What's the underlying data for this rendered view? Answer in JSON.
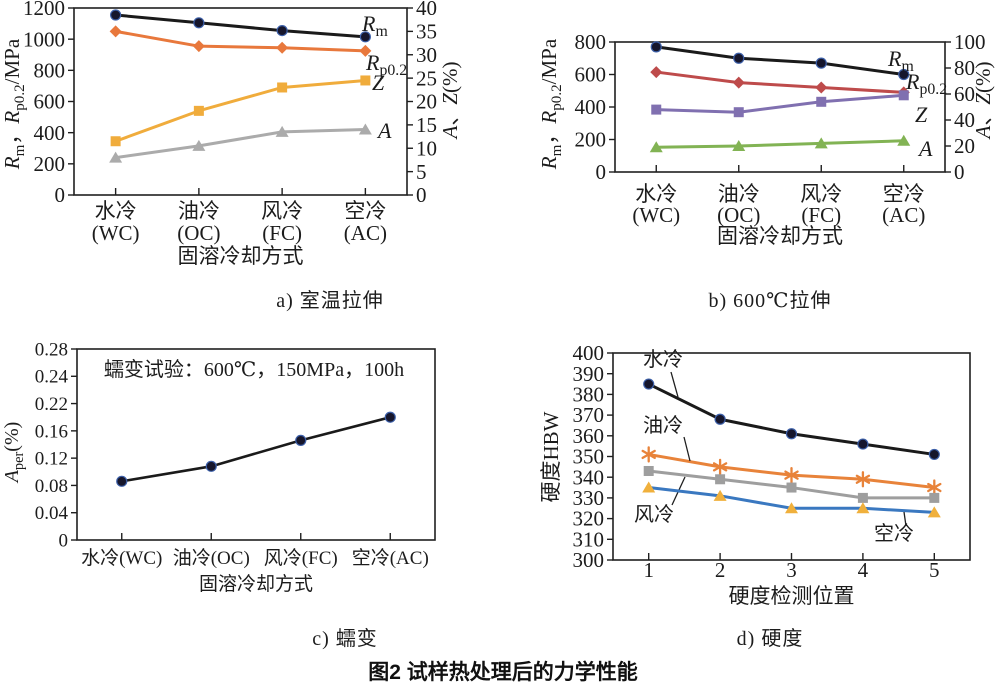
{
  "figure_title": "图2  试样热处理后的力学性能",
  "chart_data": [
    {
      "id": "a",
      "type": "line",
      "caption": "a) 室温拉伸",
      "xlabel": "固溶冷却方式",
      "categories": [
        [
          "水冷",
          "(WC)"
        ],
        [
          "油冷",
          "(OC)"
        ],
        [
          "风冷",
          "(FC)"
        ],
        [
          "空冷",
          "(AC)"
        ]
      ],
      "y_left": {
        "label": "Rm，Rp0.2/MPa",
        "label_rich": [
          {
            "t": "R",
            "i": 1
          },
          {
            "t": "m",
            "s": 1
          },
          {
            "t": "，"
          },
          {
            "t": "R",
            "i": 1
          },
          {
            "t": "p0.2",
            "s": 1
          },
          {
            "t": "/MPa"
          }
        ],
        "ticks": [
          0,
          200,
          400,
          600,
          800,
          1000,
          1200
        ],
        "range": [
          0,
          1200
        ]
      },
      "y_right": {
        "label": "A、Z(%)",
        "label_rich": [
          {
            "t": "A",
            "i": 1
          },
          {
            "t": "、"
          },
          {
            "t": "Z",
            "i": 1
          },
          {
            "t": "(%)"
          }
        ],
        "ticks": [
          0,
          5,
          10,
          15,
          20,
          25,
          30,
          35,
          40
        ],
        "range": [
          0,
          40
        ]
      },
      "series": [
        {
          "name": "Rm",
          "label_rich": [
            {
              "t": "R",
              "i": 1
            },
            {
              "t": "m",
              "s": 1
            }
          ],
          "axis": "left",
          "marker": "circle",
          "color": "#1a1a1a",
          "marker_color": "#16162c",
          "values": [
            1155,
            1105,
            1055,
            1015
          ]
        },
        {
          "name": "Rp0.2",
          "label_rich": [
            {
              "t": "R",
              "i": 1
            },
            {
              "t": "p0.2",
              "s": 1
            }
          ],
          "axis": "left",
          "marker": "diamond",
          "color": "#E8783C",
          "values": [
            1050,
            955,
            945,
            925
          ]
        },
        {
          "name": "Z",
          "label_rich": [
            {
              "t": "Z",
              "i": 1
            }
          ],
          "axis": "right",
          "marker": "square",
          "color": "#F0AC3C",
          "values": [
            11.5,
            18,
            23,
            24.5
          ]
        },
        {
          "name": "A",
          "label_rich": [
            {
              "t": "A",
              "i": 1
            }
          ],
          "axis": "right",
          "marker": "triangle",
          "color": "#ABABAB",
          "values": [
            8,
            10.5,
            13.5,
            14
          ]
        }
      ]
    },
    {
      "id": "b",
      "type": "line",
      "caption": "b) 600℃拉伸",
      "xlabel": "固溶冷却方式",
      "categories": [
        [
          "水冷",
          "(WC)"
        ],
        [
          "油冷",
          "(OC)"
        ],
        [
          "风冷",
          "(FC)"
        ],
        [
          "空冷",
          "(AC)"
        ]
      ],
      "y_left": {
        "label": "Rm，Rp0.2/MPa",
        "label_rich": [
          {
            "t": "R",
            "i": 1
          },
          {
            "t": "m",
            "s": 1
          },
          {
            "t": "，"
          },
          {
            "t": "R",
            "i": 1
          },
          {
            "t": "p0.2",
            "s": 1
          },
          {
            "t": "/MPa"
          }
        ],
        "ticks": [
          0,
          200,
          400,
          600,
          800
        ],
        "range": [
          0,
          800
        ]
      },
      "y_right": {
        "label": "A、Z(%)",
        "label_rich": [
          {
            "t": "A",
            "i": 1
          },
          {
            "t": "、"
          },
          {
            "t": "Z",
            "i": 1
          },
          {
            "t": "(%)"
          }
        ],
        "ticks": [
          0,
          20,
          40,
          60,
          80,
          100
        ],
        "range": [
          0,
          100
        ]
      },
      "series": [
        {
          "name": "Rm",
          "label_rich": [
            {
              "t": "R",
              "i": 1
            },
            {
              "t": "m",
              "s": 1
            }
          ],
          "axis": "left",
          "marker": "circle",
          "color": "#1a1a1a",
          "marker_color": "#16162c",
          "values": [
            770,
            700,
            670,
            600
          ]
        },
        {
          "name": "Rp0.2",
          "label_rich": [
            {
              "t": "R",
              "i": 1
            },
            {
              "t": "p0.2",
              "s": 1
            }
          ],
          "axis": "left",
          "marker": "diamond",
          "color": "#BE4B4B",
          "values": [
            615,
            550,
            520,
            490
          ]
        },
        {
          "name": "Z",
          "label_rich": [
            {
              "t": "Z",
              "i": 1
            }
          ],
          "axis": "right",
          "marker": "square",
          "color": "#8070B0",
          "values": [
            48,
            46,
            54,
            59
          ]
        },
        {
          "name": "A",
          "label_rich": [
            {
              "t": "A",
              "i": 1
            }
          ],
          "axis": "right",
          "marker": "triangle",
          "color": "#82B354",
          "values": [
            19,
            20,
            22,
            24
          ]
        }
      ]
    },
    {
      "id": "c",
      "type": "line",
      "caption": "c) 蠕变",
      "xlabel": "固溶冷却方式",
      "annotation": "蠕变试验：600℃，150MPa，100h",
      "categories": [
        "水冷(WC)",
        "油冷(OC)",
        "风冷(FC)",
        "空冷(AC)"
      ],
      "y_left": {
        "label": "Aper(%)",
        "label_rich": [
          {
            "t": "A",
            "i": 1
          },
          {
            "t": "per",
            "s": 1
          },
          {
            "t": "(%)"
          }
        ],
        "ticks": [
          0,
          0.04,
          0.08,
          0.12,
          0.16,
          0.22,
          0.24,
          0.28
        ],
        "range": [
          0,
          0.28
        ]
      },
      "series": [
        {
          "name": "Aper",
          "axis": "left",
          "marker": "circle",
          "color": "#1a1a1a",
          "marker_color": "#16162c",
          "values": [
            0.086,
            0.108,
            0.146,
            0.19
          ]
        }
      ]
    },
    {
      "id": "d",
      "type": "line",
      "caption": "d) 硬度",
      "xlabel": "硬度检测位置",
      "categories": [
        "1",
        "2",
        "3",
        "4",
        "5"
      ],
      "y_left": {
        "label": "硬度HBW",
        "ticks": [
          300,
          310,
          320,
          330,
          340,
          350,
          360,
          370,
          380,
          390,
          400
        ],
        "range": [
          300,
          400
        ]
      },
      "series": [
        {
          "name": "水冷",
          "axis": "left",
          "marker": "circle",
          "color": "#1a1a1a",
          "marker_color": "#16162c",
          "values": [
            385,
            368,
            361,
            356,
            351
          ]
        },
        {
          "name": "油冷",
          "axis": "left",
          "marker": "asterisk",
          "color": "#E8833A",
          "values": [
            351,
            345,
            341,
            339,
            335
          ]
        },
        {
          "name": "风冷",
          "axis": "left",
          "marker": "square",
          "color": "#9E9E9E",
          "values": [
            343,
            339,
            335,
            330,
            330
          ]
        },
        {
          "name": "空冷",
          "axis": "left",
          "marker": "triangle",
          "color": "#3A78C0",
          "marker_color": "#F0B03C",
          "values": [
            335,
            331,
            325,
            325,
            323
          ]
        }
      ]
    }
  ]
}
